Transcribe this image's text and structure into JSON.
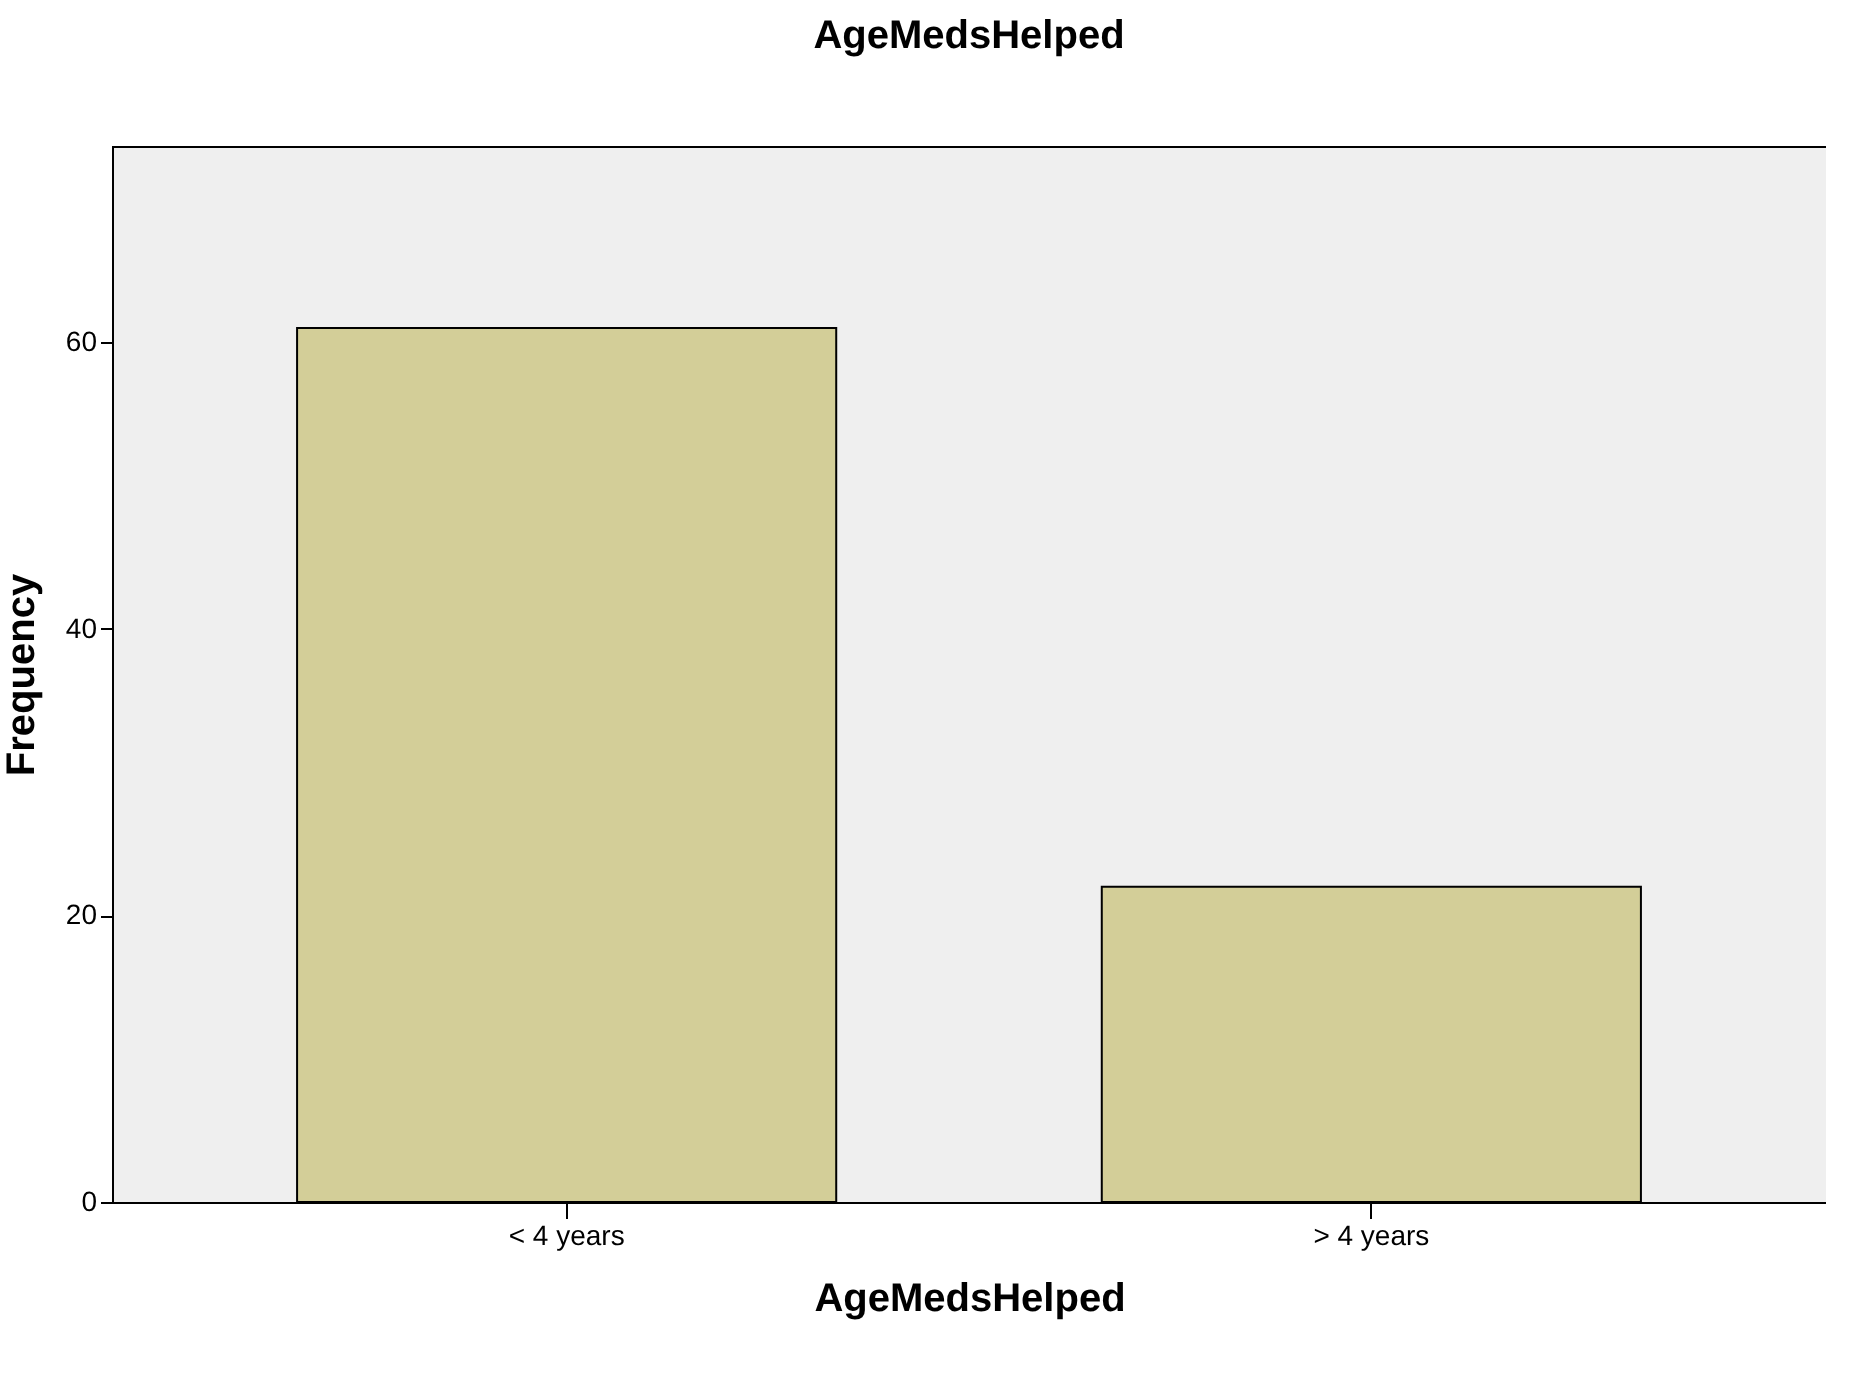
{
  "chart_data": {
    "type": "bar",
    "title": "AgeMedsHelped",
    "xlabel": "AgeMedsHelped",
    "ylabel": "Frequency",
    "categories": [
      "< 4 years",
      "> 4 years"
    ],
    "values": [
      61,
      22
    ],
    "color": "#d3ce98",
    "ylim": [
      0,
      73.7
    ],
    "yticks": [
      0,
      20,
      40,
      60
    ],
    "grid": false
  }
}
